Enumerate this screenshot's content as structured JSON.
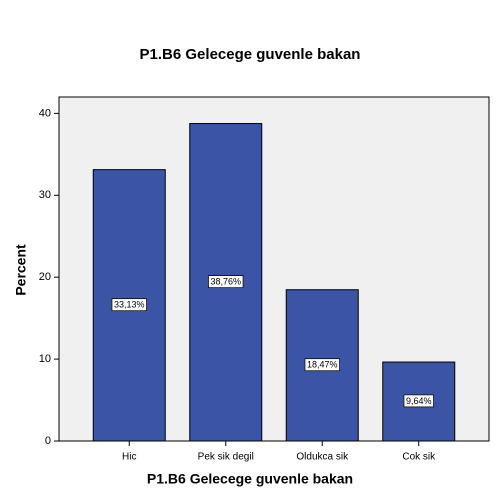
{
  "chart_data": {
    "type": "bar",
    "title": "P1.B6 Gelecege guvenle bakan",
    "x_label": "P1.B6 Gelecege guvenle bakan",
    "y_label": "Percent",
    "categories": [
      "Hic",
      "Pek sik degil",
      "Oldukca sik",
      "Cok sik"
    ],
    "values": [
      33.13,
      38.76,
      18.47,
      9.64
    ],
    "value_labels": [
      "33,13%",
      "38,76%",
      "18,47%",
      "9,64%"
    ],
    "color": "#3b54a5",
    "ylim": [
      0,
      42
    ],
    "yticks": [
      0,
      10,
      20,
      30,
      40
    ]
  }
}
